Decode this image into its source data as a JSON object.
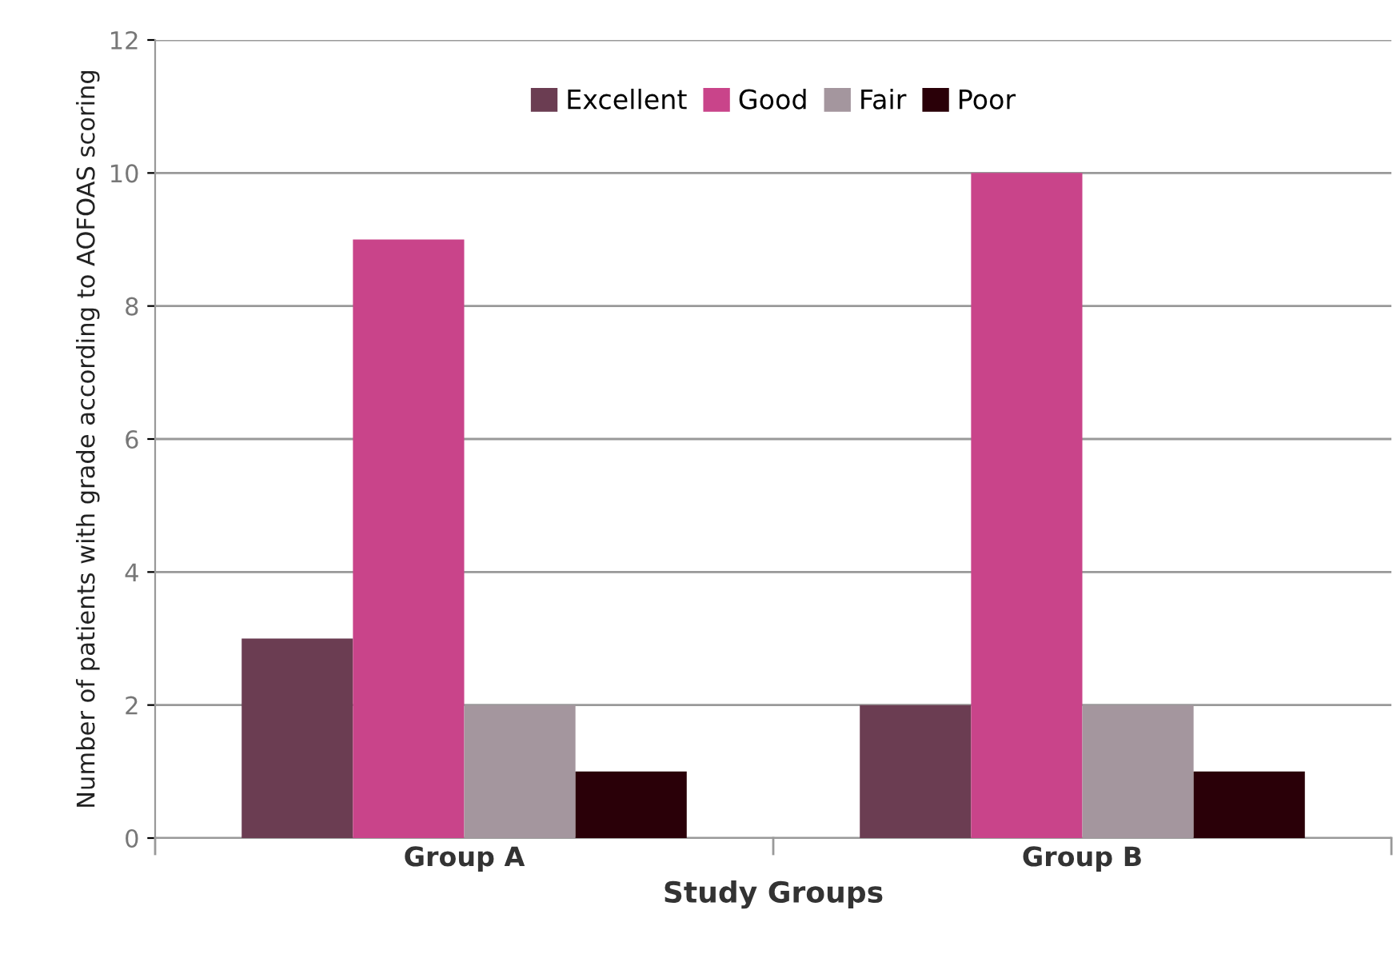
{
  "chart_data": {
    "type": "bar",
    "xlabel": "Study Groups",
    "ylabel": "Number of patients with grade according to AOFOAS scoring",
    "categories": [
      "Group A",
      "Group B"
    ],
    "series": [
      {
        "name": "Excellent",
        "color": "#6b3d52",
        "values": [
          3,
          2
        ]
      },
      {
        "name": "Good",
        "color": "#c9448a",
        "values": [
          9,
          10
        ]
      },
      {
        "name": "Fair",
        "color": "#a4969e",
        "values": [
          2,
          2
        ]
      },
      {
        "name": "Poor",
        "color": "#2a0008",
        "values": [
          1,
          1
        ]
      }
    ],
    "ylim": [
      0,
      12
    ],
    "yticks": [
      0,
      2,
      4,
      6,
      8,
      10,
      12
    ],
    "grid": "y",
    "legend": "top"
  }
}
